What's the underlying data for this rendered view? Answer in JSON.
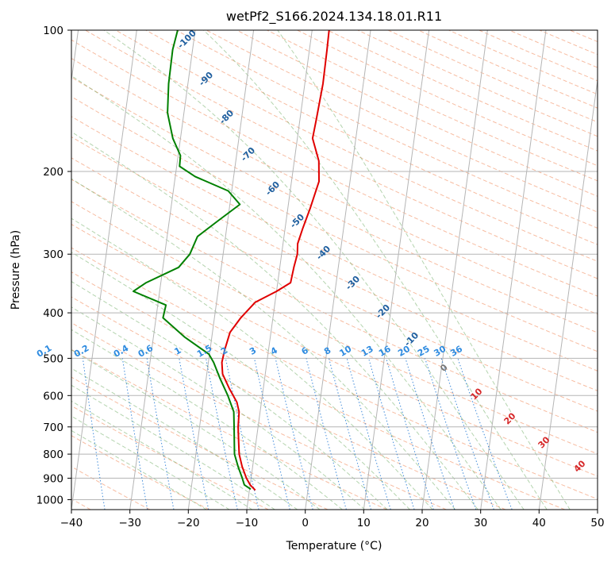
{
  "chart_data": {
    "type": "line",
    "title": "wetPf2_S166.2024.134.18.01.R11",
    "xlabel": "Temperature (°C)",
    "ylabel": "Pressure (hPa)",
    "xlim": [
      -40,
      50
    ],
    "ylim": [
      1050,
      100
    ],
    "y_scale": "log",
    "skew": true,
    "grid": true,
    "x_ticks": [
      -40,
      -30,
      -20,
      -10,
      0,
      10,
      20,
      30,
      40,
      50
    ],
    "y_ticks": [
      100,
      200,
      300,
      400,
      500,
      600,
      700,
      800,
      900,
      1000
    ],
    "series": [
      {
        "color": "#e00000",
        "label_hint": "temperature",
        "points": [
          {
            "p": 955,
            "t": -9.0
          },
          {
            "p": 930,
            "t": -10.0
          },
          {
            "p": 900,
            "t": -10.8
          },
          {
            "p": 850,
            "t": -11.8
          },
          {
            "p": 800,
            "t": -12.6
          },
          {
            "p": 750,
            "t": -13.0
          },
          {
            "p": 700,
            "t": -13.4
          },
          {
            "p": 650,
            "t": -13.6
          },
          {
            "p": 620,
            "t": -14.2
          },
          {
            "p": 580,
            "t": -15.8
          },
          {
            "p": 540,
            "t": -17.3
          },
          {
            "p": 510,
            "t": -17.7
          },
          {
            "p": 480,
            "t": -17.5
          },
          {
            "p": 440,
            "t": -17.0
          },
          {
            "p": 410,
            "t": -15.5
          },
          {
            "p": 380,
            "t": -13.4
          },
          {
            "p": 360,
            "t": -10.0
          },
          {
            "p": 345,
            "t": -7.8
          },
          {
            "p": 320,
            "t": -7.6
          },
          {
            "p": 300,
            "t": -7.3
          },
          {
            "p": 285,
            "t": -7.5
          },
          {
            "p": 265,
            "t": -7.0
          },
          {
            "p": 240,
            "t": -6.2
          },
          {
            "p": 210,
            "t": -5.3
          },
          {
            "p": 190,
            "t": -5.8
          },
          {
            "p": 170,
            "t": -7.4
          },
          {
            "p": 155,
            "t": -7.2
          },
          {
            "p": 130,
            "t": -6.9
          },
          {
            "p": 110,
            "t": -7.0
          },
          {
            "p": 100,
            "t": -7.1
          }
        ]
      },
      {
        "color": "#008000",
        "label_hint": "dewpoint",
        "points": [
          {
            "p": 950,
            "t": -9.8
          },
          {
            "p": 930,
            "t": -11.0
          },
          {
            "p": 900,
            "t": -11.5
          },
          {
            "p": 850,
            "t": -12.5
          },
          {
            "p": 800,
            "t": -13.4
          },
          {
            "p": 700,
            "t": -14.1
          },
          {
            "p": 650,
            "t": -14.5
          },
          {
            "p": 600,
            "t": -15.9
          },
          {
            "p": 550,
            "t": -17.7
          },
          {
            "p": 510,
            "t": -19.1
          },
          {
            "p": 490,
            "t": -20.1
          },
          {
            "p": 450,
            "t": -24.7
          },
          {
            "p": 410,
            "t": -28.8
          },
          {
            "p": 385,
            "t": -28.6
          },
          {
            "p": 360,
            "t": -34.5
          },
          {
            "p": 345,
            "t": -32.5
          },
          {
            "p": 320,
            "t": -27.3
          },
          {
            "p": 300,
            "t": -25.7
          },
          {
            "p": 275,
            "t": -24.8
          },
          {
            "p": 255,
            "t": -21.7
          },
          {
            "p": 235,
            "t": -18.3
          },
          {
            "p": 220,
            "t": -20.6
          },
          {
            "p": 205,
            "t": -26.6
          },
          {
            "p": 195,
            "t": -29.5
          },
          {
            "p": 185,
            "t": -29.6
          },
          {
            "p": 170,
            "t": -31.3
          },
          {
            "p": 150,
            "t": -32.8
          },
          {
            "p": 130,
            "t": -33.3
          },
          {
            "p": 110,
            "t": -33.4
          },
          {
            "p": 100,
            "t": -33.0
          }
        ]
      }
    ],
    "dry_adiabat_labels": [
      "-100",
      "-90",
      "-80",
      "-70",
      "-60",
      "-50",
      "-40",
      "-30",
      "-20",
      "-10"
    ],
    "mixing_ratio_labels": [
      "0.1",
      "0.2",
      "0.4",
      "0.6",
      "1",
      "1.5",
      "2",
      "3",
      "4",
      "6",
      "8",
      "10",
      "13",
      "16",
      "20",
      "25",
      "30",
      "36"
    ],
    "moist_adiabat_labels": [
      "0",
      "10",
      "20",
      "30",
      "40"
    ]
  }
}
